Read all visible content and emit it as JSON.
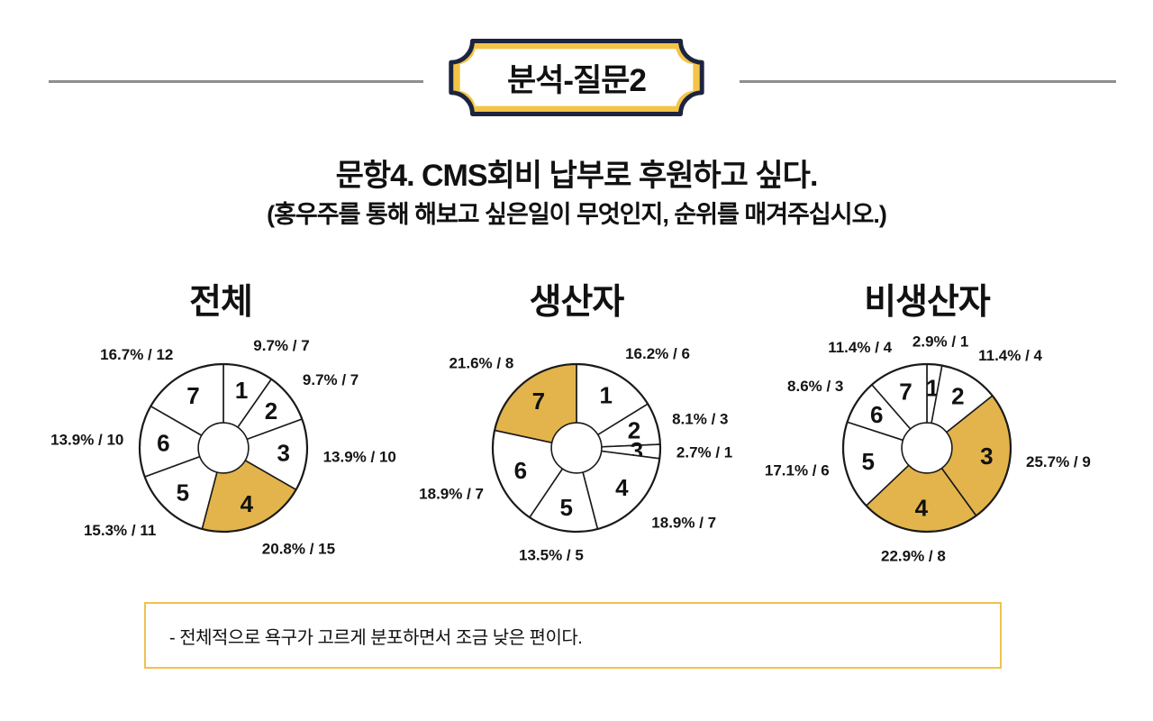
{
  "header": {
    "badge_label": "분석-질문2"
  },
  "question": {
    "title": "문항4. CMS회비 납부로 후원하고 싶다.",
    "subtitle": "(홍우주를 통해 해보고 싶은일이 무엇인지, 순위를 매겨주십시오.)"
  },
  "chart_data": [
    {
      "type": "pie",
      "title": "전체",
      "donut": true,
      "hole_ratio": 0.3,
      "start_angle_deg": 0,
      "direction": "clockwise",
      "label_format": "{pct}% / {count}",
      "segments": [
        {
          "rank": "1",
          "pct": 9.7,
          "count": 7,
          "highlighted": false
        },
        {
          "rank": "2",
          "pct": 9.7,
          "count": 7,
          "highlighted": false
        },
        {
          "rank": "3",
          "pct": 13.9,
          "count": 10,
          "highlighted": false
        },
        {
          "rank": "4",
          "pct": 20.8,
          "count": 15,
          "highlighted": true
        },
        {
          "rank": "5",
          "pct": 15.3,
          "count": 11,
          "highlighted": false
        },
        {
          "rank": "6",
          "pct": 13.9,
          "count": 10,
          "highlighted": false
        },
        {
          "rank": "7",
          "pct": 16.7,
          "count": 12,
          "highlighted": false
        }
      ]
    },
    {
      "type": "pie",
      "title": "생산자",
      "donut": true,
      "hole_ratio": 0.3,
      "start_angle_deg": 0,
      "direction": "clockwise",
      "label_format": "{pct}% / {count}",
      "segments": [
        {
          "rank": "1",
          "pct": 16.2,
          "count": 6,
          "highlighted": false
        },
        {
          "rank": "2",
          "pct": 8.1,
          "count": 3,
          "highlighted": false
        },
        {
          "rank": "3",
          "pct": 2.7,
          "count": 1,
          "highlighted": false
        },
        {
          "rank": "4",
          "pct": 18.9,
          "count": 7,
          "highlighted": false
        },
        {
          "rank": "5",
          "pct": 13.5,
          "count": 5,
          "highlighted": false
        },
        {
          "rank": "6",
          "pct": 18.9,
          "count": 7,
          "highlighted": false
        },
        {
          "rank": "7",
          "pct": 21.6,
          "count": 8,
          "highlighted": true
        }
      ]
    },
    {
      "type": "pie",
      "title": "비생산자",
      "donut": true,
      "hole_ratio": 0.3,
      "start_angle_deg": 0,
      "direction": "clockwise",
      "label_format": "{pct}% / {count}",
      "segments": [
        {
          "rank": "1",
          "pct": 2.9,
          "count": 1,
          "highlighted": false
        },
        {
          "rank": "2",
          "pct": 11.4,
          "count": 4,
          "highlighted": false
        },
        {
          "rank": "3",
          "pct": 25.7,
          "count": 9,
          "highlighted": true
        },
        {
          "rank": "4",
          "pct": 22.9,
          "count": 8,
          "highlighted": true
        },
        {
          "rank": "5",
          "pct": 17.1,
          "count": 6,
          "highlighted": false
        },
        {
          "rank": "6",
          "pct": 8.6,
          "count": 3,
          "highlighted": false
        },
        {
          "rank": "7",
          "pct": 11.4,
          "count": 4,
          "highlighted": false
        }
      ]
    }
  ],
  "note": {
    "text": "- 전체적으로 욕구가 고르게 분포하면서 조금 낮은 편이다."
  },
  "colors": {
    "pie_highlight": "#e3b44c",
    "pie_default": "#ffffff",
    "pie_stroke": "#1a1a1a",
    "badge_navy": "#1d2440",
    "badge_yellow": "#f4c447",
    "note_border": "#f0c14e",
    "rule_gray": "#8e8e8e"
  }
}
